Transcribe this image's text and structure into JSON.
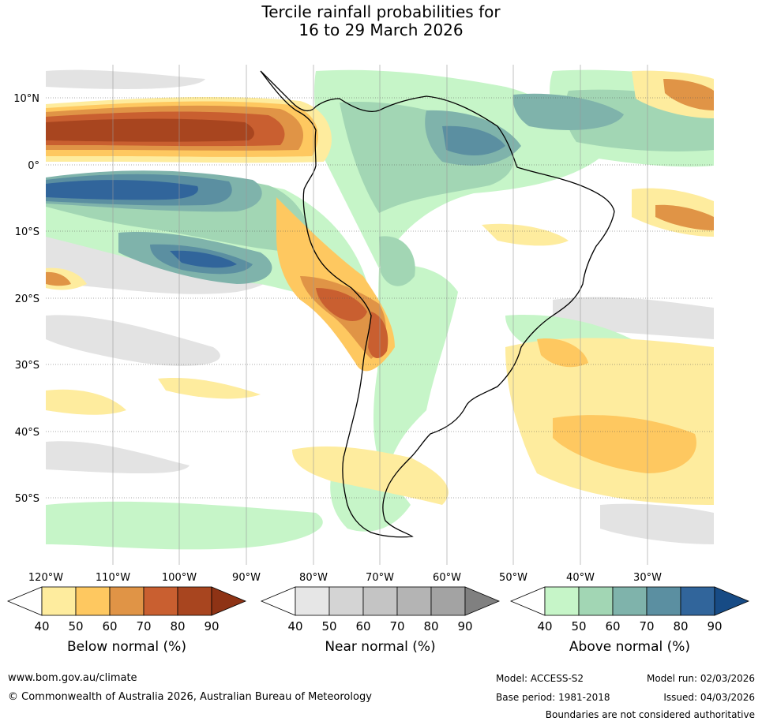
{
  "title": {
    "line1": "Tercile rainfall probabilities for",
    "line2": "16 to 29 March 2026"
  },
  "lat_labels": [
    "10°N",
    "0°",
    "10°S",
    "20°S",
    "30°S",
    "40°S",
    "50°S"
  ],
  "lon_labels": [
    "120°W",
    "110°W",
    "100°W",
    "90°W",
    "80°W",
    "70°W",
    "60°W",
    "50°W",
    "40°W",
    "30°W"
  ],
  "colorbars": {
    "below": {
      "title": "Below normal (%)",
      "ticks": [
        "40",
        "50",
        "60",
        "70",
        "80",
        "90"
      ],
      "colors": [
        "#ffffff",
        "#feec9e",
        "#fec860",
        "#e09446",
        "#c95f30",
        "#a8451f",
        "#8e3315"
      ]
    },
    "near": {
      "title": "Near normal (%)",
      "ticks": [
        "40",
        "50",
        "60",
        "70",
        "80",
        "90"
      ],
      "colors": [
        "#ffffff",
        "#e6e6e6",
        "#d4d4d4",
        "#c4c4c4",
        "#b4b4b4",
        "#a3a3a3",
        "#808080"
      ]
    },
    "above": {
      "title": "Above normal (%)",
      "ticks": [
        "40",
        "50",
        "60",
        "70",
        "80",
        "90"
      ],
      "colors": [
        "#ffffff",
        "#c6f5c8",
        "#a2d6b4",
        "#7fb3ab",
        "#5b8fa1",
        "#31659b",
        "#174b85"
      ]
    }
  },
  "footer": {
    "website": "www.bom.gov.au/climate",
    "copyright": "© Commonwealth of Australia 2026, Australian Bureau of Meteorology",
    "model": "Model: ACCESS-S2",
    "base_period": "Base period: 1981-2018",
    "model_run": "Model run: 02/03/2026",
    "issued": "Issued: 04/03/2026",
    "disclaimer": "Boundaries are not considered authoritative"
  }
}
